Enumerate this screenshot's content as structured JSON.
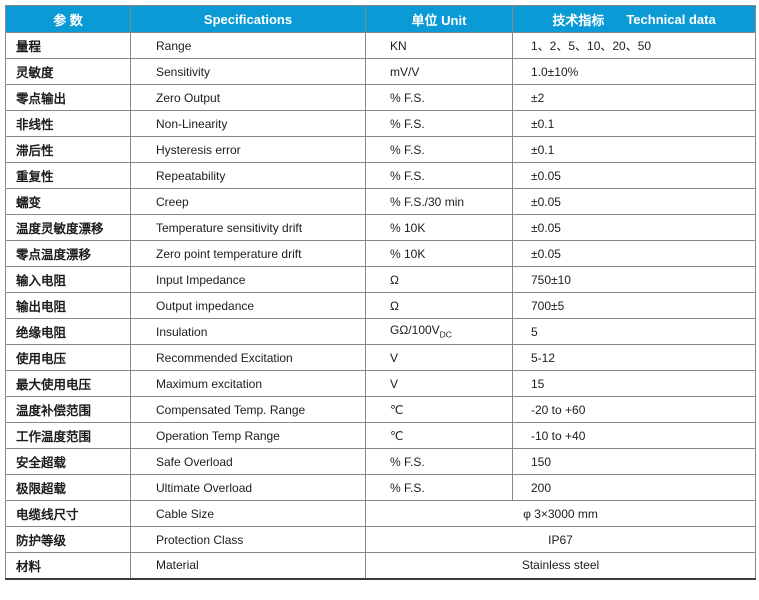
{
  "header": {
    "param": "参  数",
    "spec": "Specifications",
    "unit": "单位 Unit",
    "tech_cn": "技术指标",
    "tech_en": "Technical data"
  },
  "colors": {
    "header_bg": "#0a9bd6",
    "header_text": "#ffffff",
    "border": "#878787"
  },
  "rows": [
    {
      "param": "量程",
      "spec": "Range",
      "unit": "KN",
      "value": "1、2、5、10、20、50"
    },
    {
      "param": "灵敏度",
      "spec": "Sensitivity",
      "unit": "mV/V",
      "value": "1.0±10%"
    },
    {
      "param": "零点输出",
      "spec": "Zero Output",
      "unit": "% F.S.",
      "value": "±2"
    },
    {
      "param": "非线性",
      "spec": "Non-Linearity",
      "unit": "% F.S.",
      "value": "±0.1"
    },
    {
      "param": "滞后性",
      "spec": "Hysteresis error",
      "unit": "% F.S.",
      "value": "±0.1"
    },
    {
      "param": "重复性",
      "spec": "Repeatability",
      "unit": "% F.S.",
      "value": "±0.05"
    },
    {
      "param": "蠕变",
      "spec": "Creep",
      "unit": "% F.S./30 min",
      "value": "±0.05"
    },
    {
      "param": "温度灵敏度漂移",
      "spec": "Temperature sensitivity drift",
      "unit": "% 10K",
      "value": "±0.05"
    },
    {
      "param": "零点温度漂移",
      "spec": "Zero point temperature drift",
      "unit": "% 10K",
      "value": "±0.05"
    },
    {
      "param": "输入电阻",
      "spec": "Input Impedance",
      "unit": "Ω",
      "value": "750±10"
    },
    {
      "param": "输出电阻",
      "spec": "Output impedance",
      "unit": "Ω",
      "value": "700±5"
    },
    {
      "param": "绝缘电阻",
      "spec": "Insulation",
      "unit": "GΩ/100V",
      "unit_sub": "DC",
      "value": "5"
    },
    {
      "param": "使用电压",
      "spec": "Recommended Excitation",
      "unit": "V",
      "value": "5-12"
    },
    {
      "param": "最大使用电压",
      "spec": "Maximum excitation",
      "unit": "V",
      "value": "15"
    },
    {
      "param": "温度补偿范围",
      "spec": "Compensated Temp. Range",
      "unit": "℃",
      "value": "-20 to +60"
    },
    {
      "param": "工作温度范围",
      "spec": "Operation Temp Range",
      "unit": "℃",
      "value": "-10 to +40"
    },
    {
      "param": "安全超载",
      "spec": "Safe Overload",
      "unit": "% F.S.",
      "value": "150"
    },
    {
      "param": "极限超载",
      "spec": "Ultimate Overload",
      "unit": "% F.S.",
      "value": "200"
    },
    {
      "param": "电缆线尺寸",
      "spec": "Cable Size",
      "merged": true,
      "value": "φ 3×3000 mm"
    },
    {
      "param": "防护等级",
      "spec": "Protection Class",
      "merged": true,
      "value": "IP67"
    },
    {
      "param": "材料",
      "spec": "Material",
      "merged": true,
      "value": "Stainless steel"
    }
  ]
}
